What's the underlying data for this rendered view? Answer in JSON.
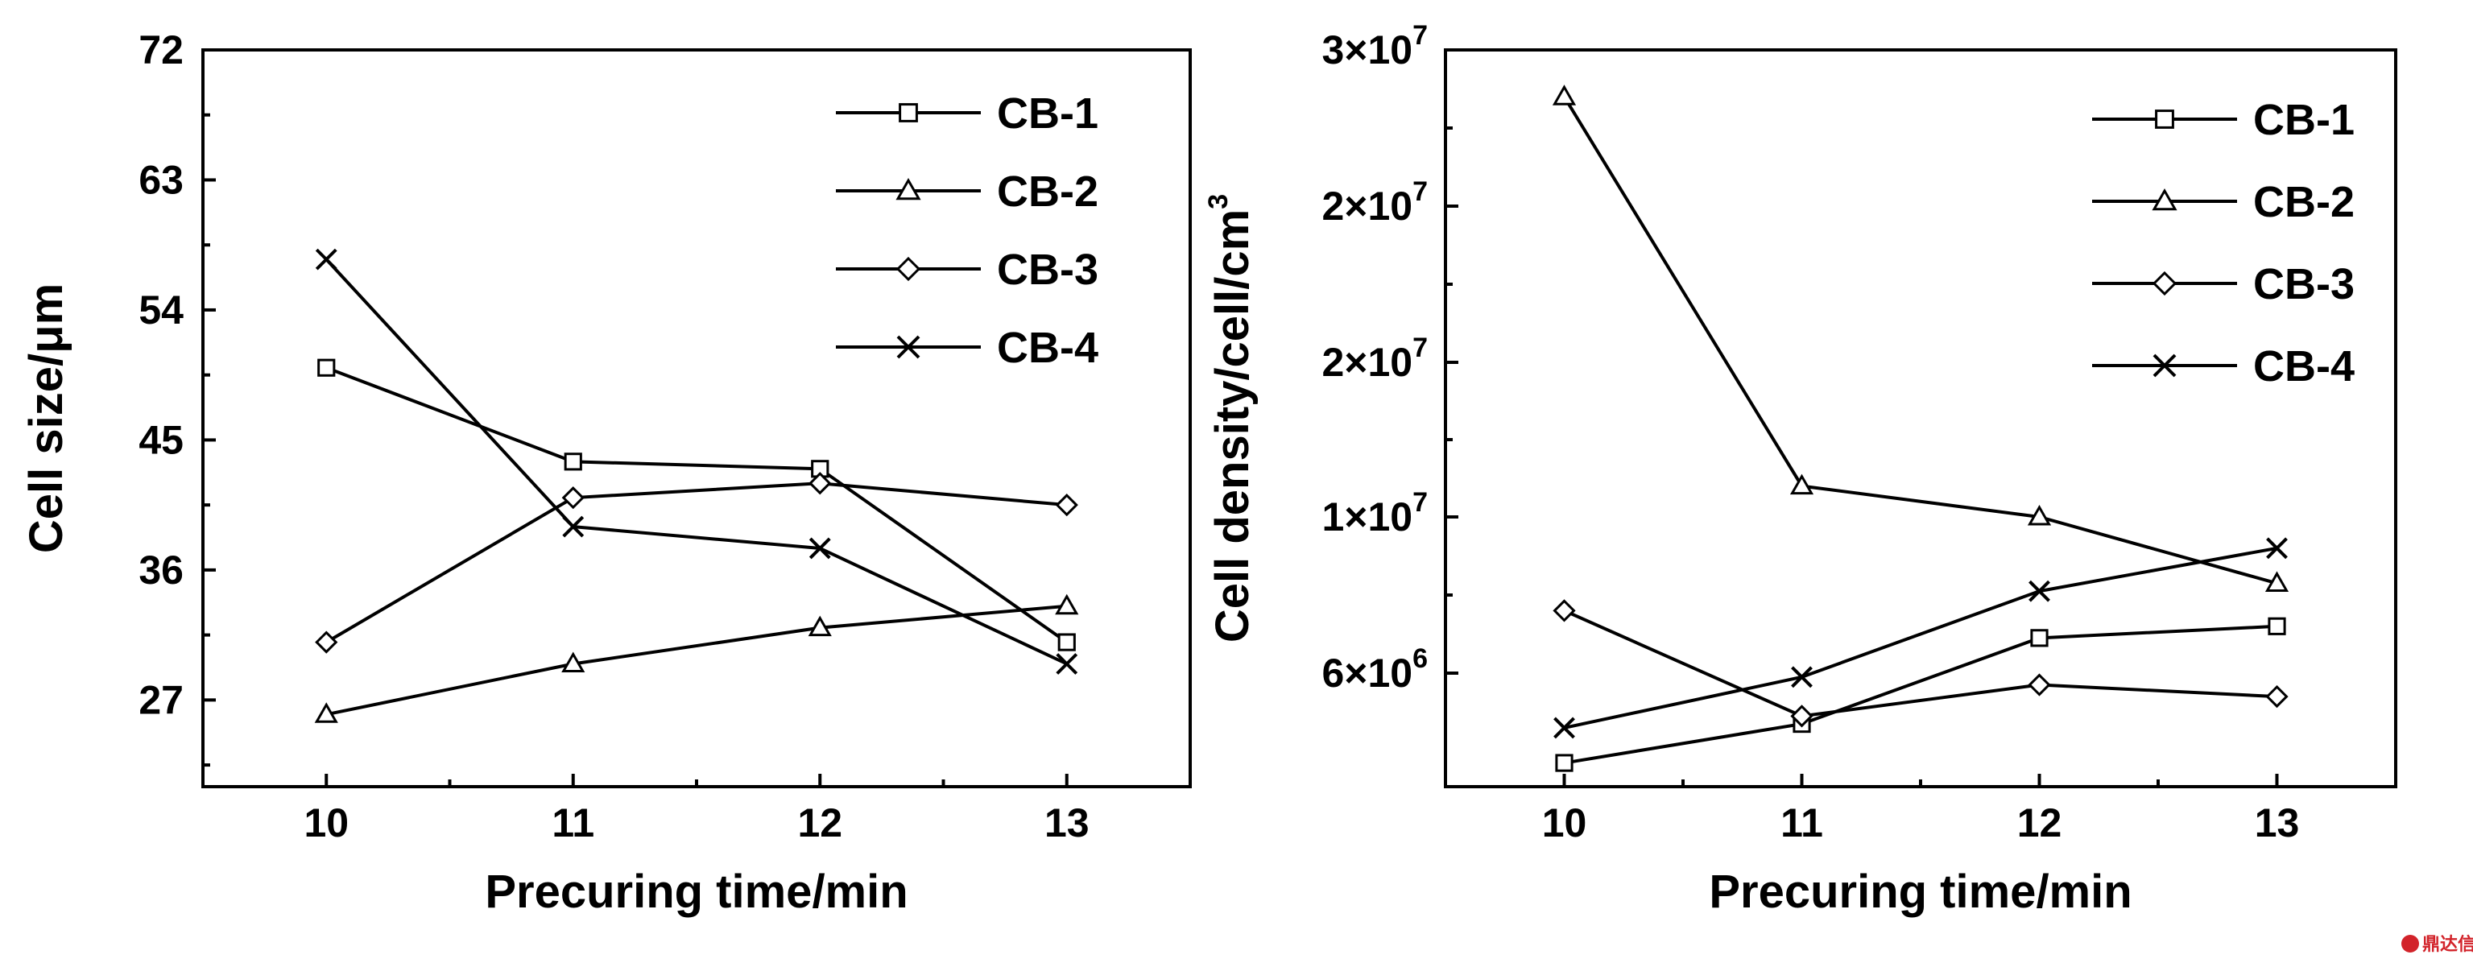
{
  "chart_data": [
    {
      "type": "line",
      "xlabel": "Precuring time/min",
      "ylabel": "Cell size/μm",
      "x": [
        10,
        11,
        12,
        13
      ],
      "xticks": [
        "10",
        "11",
        "12",
        "13"
      ],
      "xlim": [
        9.5,
        13.5
      ],
      "ylim": [
        21,
        72
      ],
      "yticks": [
        27,
        36,
        45,
        54,
        63,
        72
      ],
      "ytick_labels": [
        "27",
        "36",
        "45",
        "54",
        "63",
        "72"
      ],
      "grid": false,
      "legend_position": "top-right",
      "series": [
        {
          "name": "CB-1",
          "marker": "square",
          "values": [
            50,
            43.5,
            43,
            31
          ]
        },
        {
          "name": "CB-2",
          "marker": "triangle",
          "values": [
            26,
            29.5,
            32,
            33.5
          ]
        },
        {
          "name": "CB-3",
          "marker": "diamond",
          "values": [
            31,
            41,
            42,
            40.5
          ]
        },
        {
          "name": "CB-4",
          "marker": "x",
          "values": [
            57.5,
            39,
            37.5,
            29.5
          ]
        }
      ]
    },
    {
      "type": "line",
      "xlabel": "Precuring time/min",
      "ylabel": "Cell density/cell/cm3",
      "x": [
        10,
        11,
        12,
        13
      ],
      "xticks": [
        "10",
        "11",
        "12",
        "13"
      ],
      "xlim": [
        9.5,
        13.5
      ],
      "ylim": [
        2000000,
        30000000
      ],
      "yticks": [
        6000000,
        10000000,
        20000000,
        30000000
      ],
      "ytick_labels": [
        "6×10^6",
        "1×10^7",
        "2×10^7",
        "3×10^7"
      ],
      "ytick_positions": [
        6000000,
        12000000,
        18000000,
        24000000,
        30000000
      ],
      "ytick_texts": [
        {
          "base": "6×10",
          "exp": "6"
        },
        {
          "base": "1×10",
          "exp": "7"
        },
        {
          "base": "2×10",
          "exp": "7"
        },
        {
          "base": "2×10",
          "exp": "7"
        },
        {
          "base": "3×10",
          "exp": "7"
        }
      ],
      "ylabel_base": "Cell density/cell/cm",
      "ylabel_exp": "3",
      "grid": false,
      "legend_position": "top-right",
      "series": [
        {
          "name": "CB-1",
          "marker": "square",
          "values": [
            3700000,
            4700000,
            6900000,
            7200000
          ]
        },
        {
          "name": "CB-2",
          "marker": "triangle",
          "values": [
            28500000,
            12000000,
            10000000,
            8300000
          ]
        },
        {
          "name": "CB-3",
          "marker": "diamond",
          "values": [
            7600000,
            4900000,
            5700000,
            5400000
          ]
        },
        {
          "name": "CB-4",
          "marker": "x",
          "values": [
            4600000,
            5900000,
            8100000,
            9200000
          ]
        }
      ]
    }
  ],
  "watermark": {
    "text": "鼎达信",
    "color": "#d2232a"
  }
}
